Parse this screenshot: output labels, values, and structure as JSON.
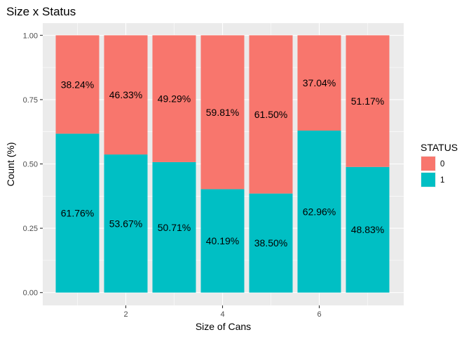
{
  "chart_data": {
    "type": "bar",
    "stacked": true,
    "title": "Size x Status",
    "xlabel": "Size of Cans",
    "ylabel": "Count (%)",
    "x": [
      1,
      2,
      3,
      4,
      5,
      6,
      7
    ],
    "x_ticks": [
      2,
      4,
      6
    ],
    "x_tick_labels": [
      "2",
      "4",
      "6"
    ],
    "xlim": [
      0.5,
      7.5
    ],
    "ylim": [
      0,
      1
    ],
    "y_ticks": [
      0,
      0.25,
      0.5,
      0.75,
      1
    ],
    "y_tick_labels": [
      "0.00",
      "0.25",
      "0.50",
      "0.75",
      "1.00"
    ],
    "grid": true,
    "legend_position": "right",
    "legend_title": "STATUS",
    "series": [
      {
        "name": "1",
        "color": "#00BFC4",
        "values": [
          0.6176,
          0.5367,
          0.5071,
          0.4019,
          0.385,
          0.6296,
          0.4883
        ],
        "labels": [
          "61.76%",
          "53.67%",
          "50.71%",
          "40.19%",
          "38.50%",
          "62.96%",
          "48.83%"
        ]
      },
      {
        "name": "0",
        "color": "#F8766D",
        "values": [
          0.3824,
          0.4633,
          0.4929,
          0.5981,
          0.615,
          0.3704,
          0.5117
        ],
        "labels": [
          "38.24%",
          "46.33%",
          "49.29%",
          "59.81%",
          "61.50%",
          "37.04%",
          "51.17%"
        ]
      }
    ],
    "legend_order": [
      "0",
      "1"
    ]
  }
}
